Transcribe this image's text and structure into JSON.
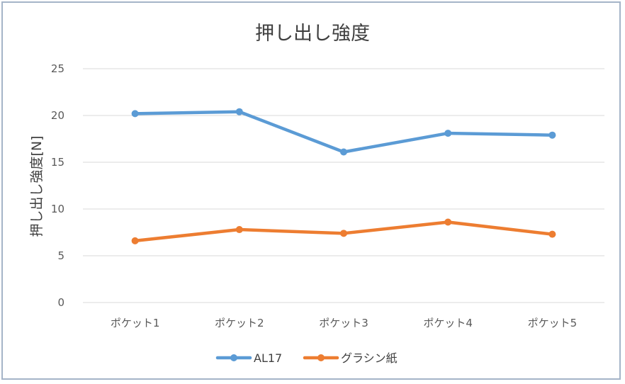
{
  "chart_data": {
    "type": "line",
    "title": "押し出し強度",
    "xlabel": "",
    "ylabel": "押し出し強度[N]",
    "categories": [
      "ポケット1",
      "ポケット2",
      "ポケット3",
      "ポケット4",
      "ポケット5"
    ],
    "ylim": [
      0,
      25
    ],
    "yticks": [
      "0",
      "5",
      "10",
      "15",
      "20",
      "25"
    ],
    "grid": true,
    "legend_position": "bottom",
    "series": [
      {
        "name": "AL17",
        "color": "#5b9bd5",
        "values": [
          20.2,
          20.4,
          16.1,
          18.1,
          17.9
        ]
      },
      {
        "name": "グラシン紙",
        "color": "#ed7d31",
        "values": [
          6.6,
          7.8,
          7.4,
          8.6,
          7.3
        ]
      }
    ]
  }
}
